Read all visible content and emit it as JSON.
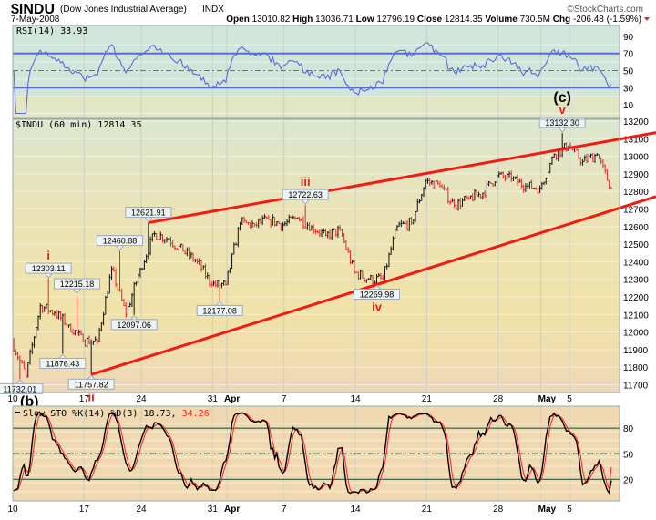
{
  "header": {
    "symbol": "$INDU",
    "name": "(Dow Jones Industrial Average)",
    "exchange": "INDX",
    "copyright": "©StockCharts.com",
    "date": "7-May-2008",
    "open_label": "Open",
    "open": "13010.82",
    "high_label": "High",
    "high": "13036.71",
    "low_label": "Low",
    "low": "12796.19",
    "close_label": "Close",
    "close": "12814.35",
    "volume_label": "Volume",
    "volume": "730.5M",
    "chg_label": "Chg",
    "chg": "-206.48 (-1.59%)",
    "chg_color": "#e0201a"
  },
  "colors": {
    "up_bar": "#111111",
    "down_bar": "#e8262a",
    "trendline": "#f01c14",
    "rsi_line": "#5a6ad8",
    "sto_k": "#000000",
    "sto_d": "#ff2020",
    "wave_label": "#e0201a"
  },
  "chart_data": [
    {
      "type": "line",
      "panel": "rsi",
      "title": "RSI(14) 33.93",
      "ylim": [
        0,
        100
      ],
      "yticks": [
        "90",
        "70",
        "50",
        "30",
        "10"
      ],
      "yticks_values": [
        90,
        70,
        50,
        30,
        10
      ],
      "reference_lines": [
        70,
        50,
        30
      ],
      "current_value": 33.93
    },
    {
      "type": "ohlc",
      "panel": "price",
      "title": "$INDU (60 min) 12814.35",
      "ylim": [
        11650,
        13230
      ],
      "yticks": [
        "13200",
        "13100",
        "13000",
        "12900",
        "12800",
        "12700",
        "12600",
        "12500",
        "12400",
        "12300",
        "12200",
        "12100",
        "12000",
        "11900",
        "11800",
        "11700"
      ],
      "days": [
        {
          "date": "Mar 10",
          "close": 11750
        },
        {
          "date": "Mar 11",
          "close": 12150
        },
        {
          "date": "Mar 12",
          "close": 12110
        },
        {
          "date": "Mar 13",
          "close": 12040
        },
        {
          "date": "Mar 14",
          "close": 11950
        },
        {
          "date": "Mar 17",
          "close": 11950
        },
        {
          "date": "Mar 18",
          "close": 12360
        },
        {
          "date": "Mar 19",
          "close": 12100
        },
        {
          "date": "Mar 20",
          "close": 12360
        },
        {
          "date": "Mar 24",
          "close": 12560
        },
        {
          "date": "Mar 25",
          "close": 12530
        },
        {
          "date": "Mar 26",
          "close": 12460
        },
        {
          "date": "Mar 27",
          "close": 12400
        },
        {
          "date": "Mar 28",
          "close": 12270
        },
        {
          "date": "Mar 31",
          "close": 12270
        },
        {
          "date": "Apr 1",
          "close": 12620
        },
        {
          "date": "Apr 2",
          "close": 12610
        },
        {
          "date": "Apr 3",
          "close": 12640
        },
        {
          "date": "Apr 4",
          "close": 12610
        },
        {
          "date": "Apr 7",
          "close": 12650
        },
        {
          "date": "Apr 8",
          "close": 12600
        },
        {
          "date": "Apr 9",
          "close": 12550
        },
        {
          "date": "Apr 10",
          "close": 12580
        },
        {
          "date": "Apr 11",
          "close": 12340
        },
        {
          "date": "Apr 14",
          "close": 12300
        },
        {
          "date": "Apr 15",
          "close": 12300
        },
        {
          "date": "Apr 16",
          "close": 12600
        },
        {
          "date": "Apr 17",
          "close": 12620
        },
        {
          "date": "Apr 18",
          "close": 12860
        },
        {
          "date": "Apr 21",
          "close": 12830
        },
        {
          "date": "Apr 22",
          "close": 12720
        },
        {
          "date": "Apr 23",
          "close": 12760
        },
        {
          "date": "Apr 24",
          "close": 12790
        },
        {
          "date": "Apr 25",
          "close": 12890
        },
        {
          "date": "Apr 28",
          "close": 12870
        },
        {
          "date": "Apr 29",
          "close": 12830
        },
        {
          "date": "Apr 30",
          "close": 12820
        },
        {
          "date": "May 1",
          "close": 13010
        },
        {
          "date": "May 2",
          "close": 13060
        },
        {
          "date": "May 5",
          "close": 12970
        },
        {
          "date": "May 6",
          "close": 13010
        },
        {
          "date": "May 7",
          "close": 12814
        }
      ],
      "pivots": [
        {
          "date": "Mar 10",
          "value": 11732.01,
          "text": "11732.01",
          "kind": "low"
        },
        {
          "date": "Mar 12",
          "value": 12303.11,
          "text": "12303.11",
          "kind": "high",
          "wave": "i"
        },
        {
          "date": "Mar 13",
          "value": 11876.43,
          "text": "11876.43",
          "kind": "low"
        },
        {
          "date": "Mar 14",
          "value": 12215.18,
          "text": "12215.18",
          "kind": "high"
        },
        {
          "date": "Mar 17",
          "value": 11757.82,
          "text": "11757.82",
          "kind": "low",
          "wave": "ii"
        },
        {
          "date": "Mar 19",
          "value": 12460.88,
          "text": "12460.88",
          "kind": "high"
        },
        {
          "date": "Mar 20",
          "value": 12097.06,
          "text": "12097.06",
          "kind": "low"
        },
        {
          "date": "Mar 24",
          "value": 12621.91,
          "text": "12621.91",
          "kind": "high"
        },
        {
          "date": "Mar 31",
          "value": 12177.08,
          "text": "12177.08",
          "kind": "low"
        },
        {
          "date": "Apr 8",
          "value": 12722.63,
          "text": "12722.63",
          "kind": "high",
          "wave": "iii"
        },
        {
          "date": "Apr 15",
          "value": 12269.98,
          "text": "12269.98",
          "kind": "low",
          "wave": "iv"
        },
        {
          "date": "May 2",
          "value": 13132.3,
          "text": "13132.30",
          "kind": "high",
          "wave": "v"
        }
      ],
      "trendlines": [
        {
          "from": {
            "date": "Mar 24",
            "value": 12621.91
          },
          "to": {
            "date": "May 2",
            "value": 13040
          }
        },
        {
          "from": {
            "date": "Mar 17",
            "value": 11757.82
          },
          "to": {
            "date": "Apr 15",
            "value": 12269.98
          }
        }
      ],
      "annotations": {
        "c": "(c)",
        "b": "(b)"
      },
      "xticks": [
        {
          "label": "10",
          "date": "Mar 10"
        },
        {
          "label": "17",
          "date": "Mar 17"
        },
        {
          "label": "24",
          "date": "Mar 24"
        },
        {
          "label": "31",
          "date": "Mar 31"
        },
        {
          "label": "Apr",
          "date": "Apr 1",
          "bold": true
        },
        {
          "label": "7",
          "date": "Apr 7"
        },
        {
          "label": "14",
          "date": "Apr 14"
        },
        {
          "label": "21",
          "date": "Apr 21"
        },
        {
          "label": "28",
          "date": "Apr 28"
        },
        {
          "label": "May",
          "date": "May 1",
          "bold": true
        },
        {
          "label": "5",
          "date": "May 5"
        }
      ]
    },
    {
      "type": "line",
      "panel": "stochastic",
      "title": "Slow STO %K(14) %D(3) 18.73,",
      "title_d": "34.26",
      "ylim": [
        0,
        100
      ],
      "yticks": [
        "80",
        "50",
        "20"
      ],
      "yticks_values": [
        80,
        50,
        20
      ],
      "reference_lines": [
        80,
        50,
        20
      ],
      "series": [
        {
          "name": "%K(14)",
          "current": 18.73
        },
        {
          "name": "%D(3)",
          "current": 34.26
        }
      ]
    }
  ]
}
